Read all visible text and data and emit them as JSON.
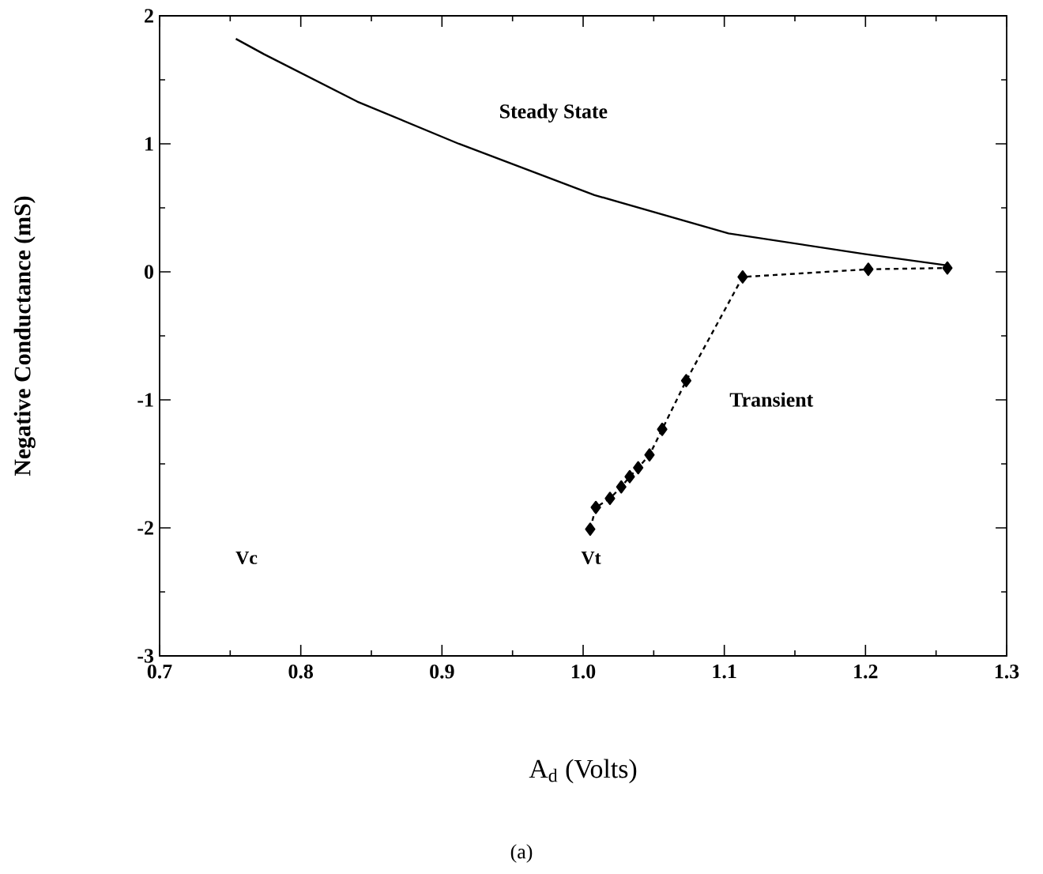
{
  "chart_data": {
    "type": "line",
    "xlabel": "A$_{d}$ (Volts)",
    "ylabel": "Negative Conductance (mS)",
    "xlim": [
      0.7,
      1.3
    ],
    "ylim": [
      -3,
      2
    ],
    "xticks": [
      {
        "value": 0.7,
        "label": "0.7"
      },
      {
        "value": 0.8,
        "label": "0.8"
      },
      {
        "value": 0.9,
        "label": "0.9"
      },
      {
        "value": 1.0,
        "label": "1.0"
      },
      {
        "value": 1.1,
        "label": "1.1"
      },
      {
        "value": 1.2,
        "label": "1.2"
      },
      {
        "value": 1.3,
        "label": "1.3"
      }
    ],
    "yticks": [
      -3,
      -2,
      -1,
      0,
      1,
      2
    ],
    "grid": false,
    "legend": false,
    "series": [
      {
        "name": "Steady State",
        "color": "#000000",
        "marker": "none",
        "line_style": "solid",
        "x": [
          0.754,
          0.774,
          0.84,
          0.912,
          1.008,
          1.103,
          1.199,
          1.258
        ],
        "values": [
          1.82,
          1.7,
          1.33,
          1.0,
          0.6,
          0.3,
          0.14,
          0.05
        ]
      },
      {
        "name": "Transient",
        "color": "#000000",
        "marker": "diamond",
        "line_style": "dashed",
        "x": [
          1.005,
          1.009,
          1.019,
          1.027,
          1.033,
          1.039,
          1.047,
          1.056,
          1.073,
          1.113,
          1.202,
          1.258
        ],
        "values": [
          -2.01,
          -1.84,
          -1.77,
          -1.68,
          -1.6,
          -1.53,
          -1.43,
          -1.23,
          -0.85,
          -0.04,
          0.02,
          0.03
        ]
      }
    ],
    "annotations": [
      "Vc",
      "Vt",
      "(a)"
    ]
  }
}
